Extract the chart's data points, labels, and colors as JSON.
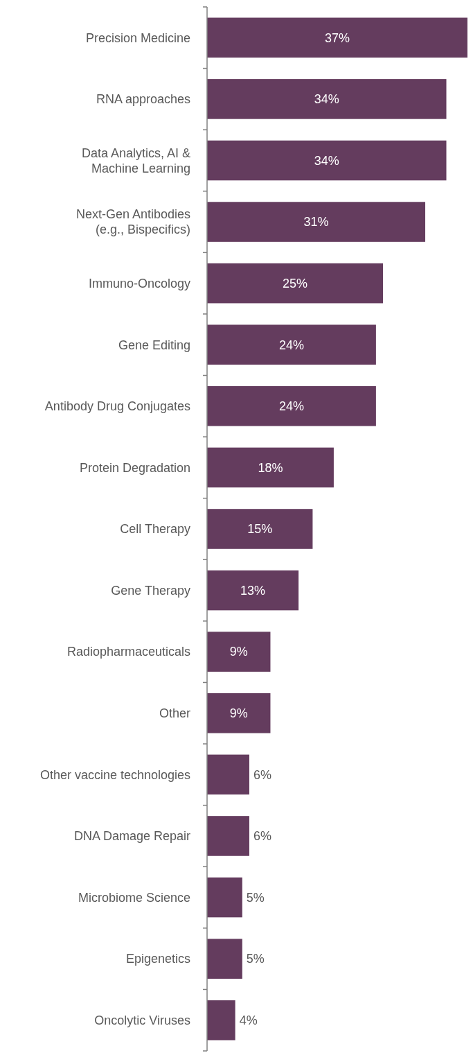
{
  "chart_data": {
    "type": "bar",
    "orientation": "horizontal",
    "relative": false,
    "categories": [
      "Precision Medicine",
      "RNA approaches",
      "Data Analytics, AI &\nMachine Learning",
      "Next-Gen Antibodies\n(e.g., Bispecifics)",
      "Immuno-Oncology",
      "Gene Editing",
      "Antibody Drug Conjugates",
      "Protein Degradation",
      "Cell Therapy",
      "Gene Therapy",
      "Radiopharmaceuticals",
      "Other",
      "Other vaccine technologies",
      "DNA Damage Repair",
      "Microbiome Science",
      "Epigenetics",
      "Oncolytic Viruses"
    ],
    "values": [
      37,
      34,
      34,
      31,
      25,
      24,
      24,
      18,
      15,
      13,
      9,
      9,
      6,
      6,
      5,
      5,
      4
    ],
    "value_labels": [
      "37%",
      "34%",
      "34%",
      "31%",
      "25%",
      "24%",
      "24%",
      "18%",
      "15%",
      "13%",
      "9%",
      "9%",
      "6%",
      "6%",
      "5%",
      "5%",
      "4%"
    ],
    "color": "#643c5e"
  }
}
